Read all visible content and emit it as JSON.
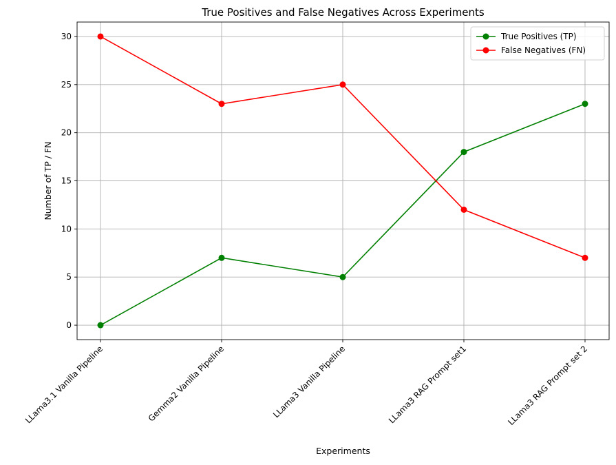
{
  "chart_data": {
    "type": "line",
    "title": "True Positives and False Negatives Across Experiments",
    "xlabel": "Experiments",
    "ylabel": "Number of TP / FN",
    "categories": [
      "LLama3.1 Vanilla Pipeline",
      "Gemma2 Vanilla Pipeline",
      "LLama3 Vanilla Pipeline",
      "LLama3 RAG Prompt set1",
      "LLama3 RAG Prompt set 2"
    ],
    "series": [
      {
        "name": "True Positives (TP)",
        "color": "#008000",
        "values": [
          0,
          7,
          5,
          18,
          23
        ]
      },
      {
        "name": "False Negatives (FN)",
        "color": "#ff0000",
        "values": [
          30,
          23,
          25,
          12,
          7
        ]
      }
    ],
    "ylim": [
      -1.5,
      31.5
    ],
    "yticks": [
      0,
      5,
      10,
      15,
      20,
      25,
      30
    ],
    "grid": true,
    "legend_position": "top-right",
    "marker": "circle"
  }
}
